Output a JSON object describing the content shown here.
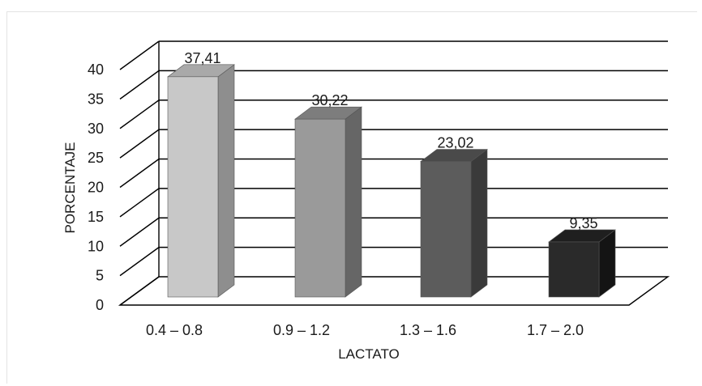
{
  "chart_data": {
    "type": "bar",
    "categories": [
      "0.4 – 0.8",
      "0.9 – 1.2",
      "1.3 – 1.6",
      "1.7 – 2.0"
    ],
    "values": [
      37.41,
      30.22,
      23.02,
      9.35
    ],
    "data_labels": [
      "37,41",
      "30,22",
      "23,02",
      "9,35"
    ],
    "xlabel": "LACTATO",
    "ylabel": "PORCENTAJE",
    "ylim": [
      0,
      40
    ],
    "yticks": [
      0,
      5,
      10,
      15,
      20,
      25,
      30,
      35,
      40
    ],
    "grid": true,
    "style": "3d-column",
    "colors": {
      "bars": [
        {
          "front": "#c8c8c8",
          "side": "#8e8e8e",
          "top": "#a9a9a9"
        },
        {
          "front": "#9a9a9a",
          "side": "#666666",
          "top": "#7d7d7d"
        },
        {
          "front": "#5c5c5c",
          "side": "#3a3a3a",
          "top": "#4a4a4a"
        },
        {
          "front": "#2a2a2a",
          "side": "#141414",
          "top": "#1f1f1f"
        }
      ],
      "grid": "#000000"
    }
  }
}
